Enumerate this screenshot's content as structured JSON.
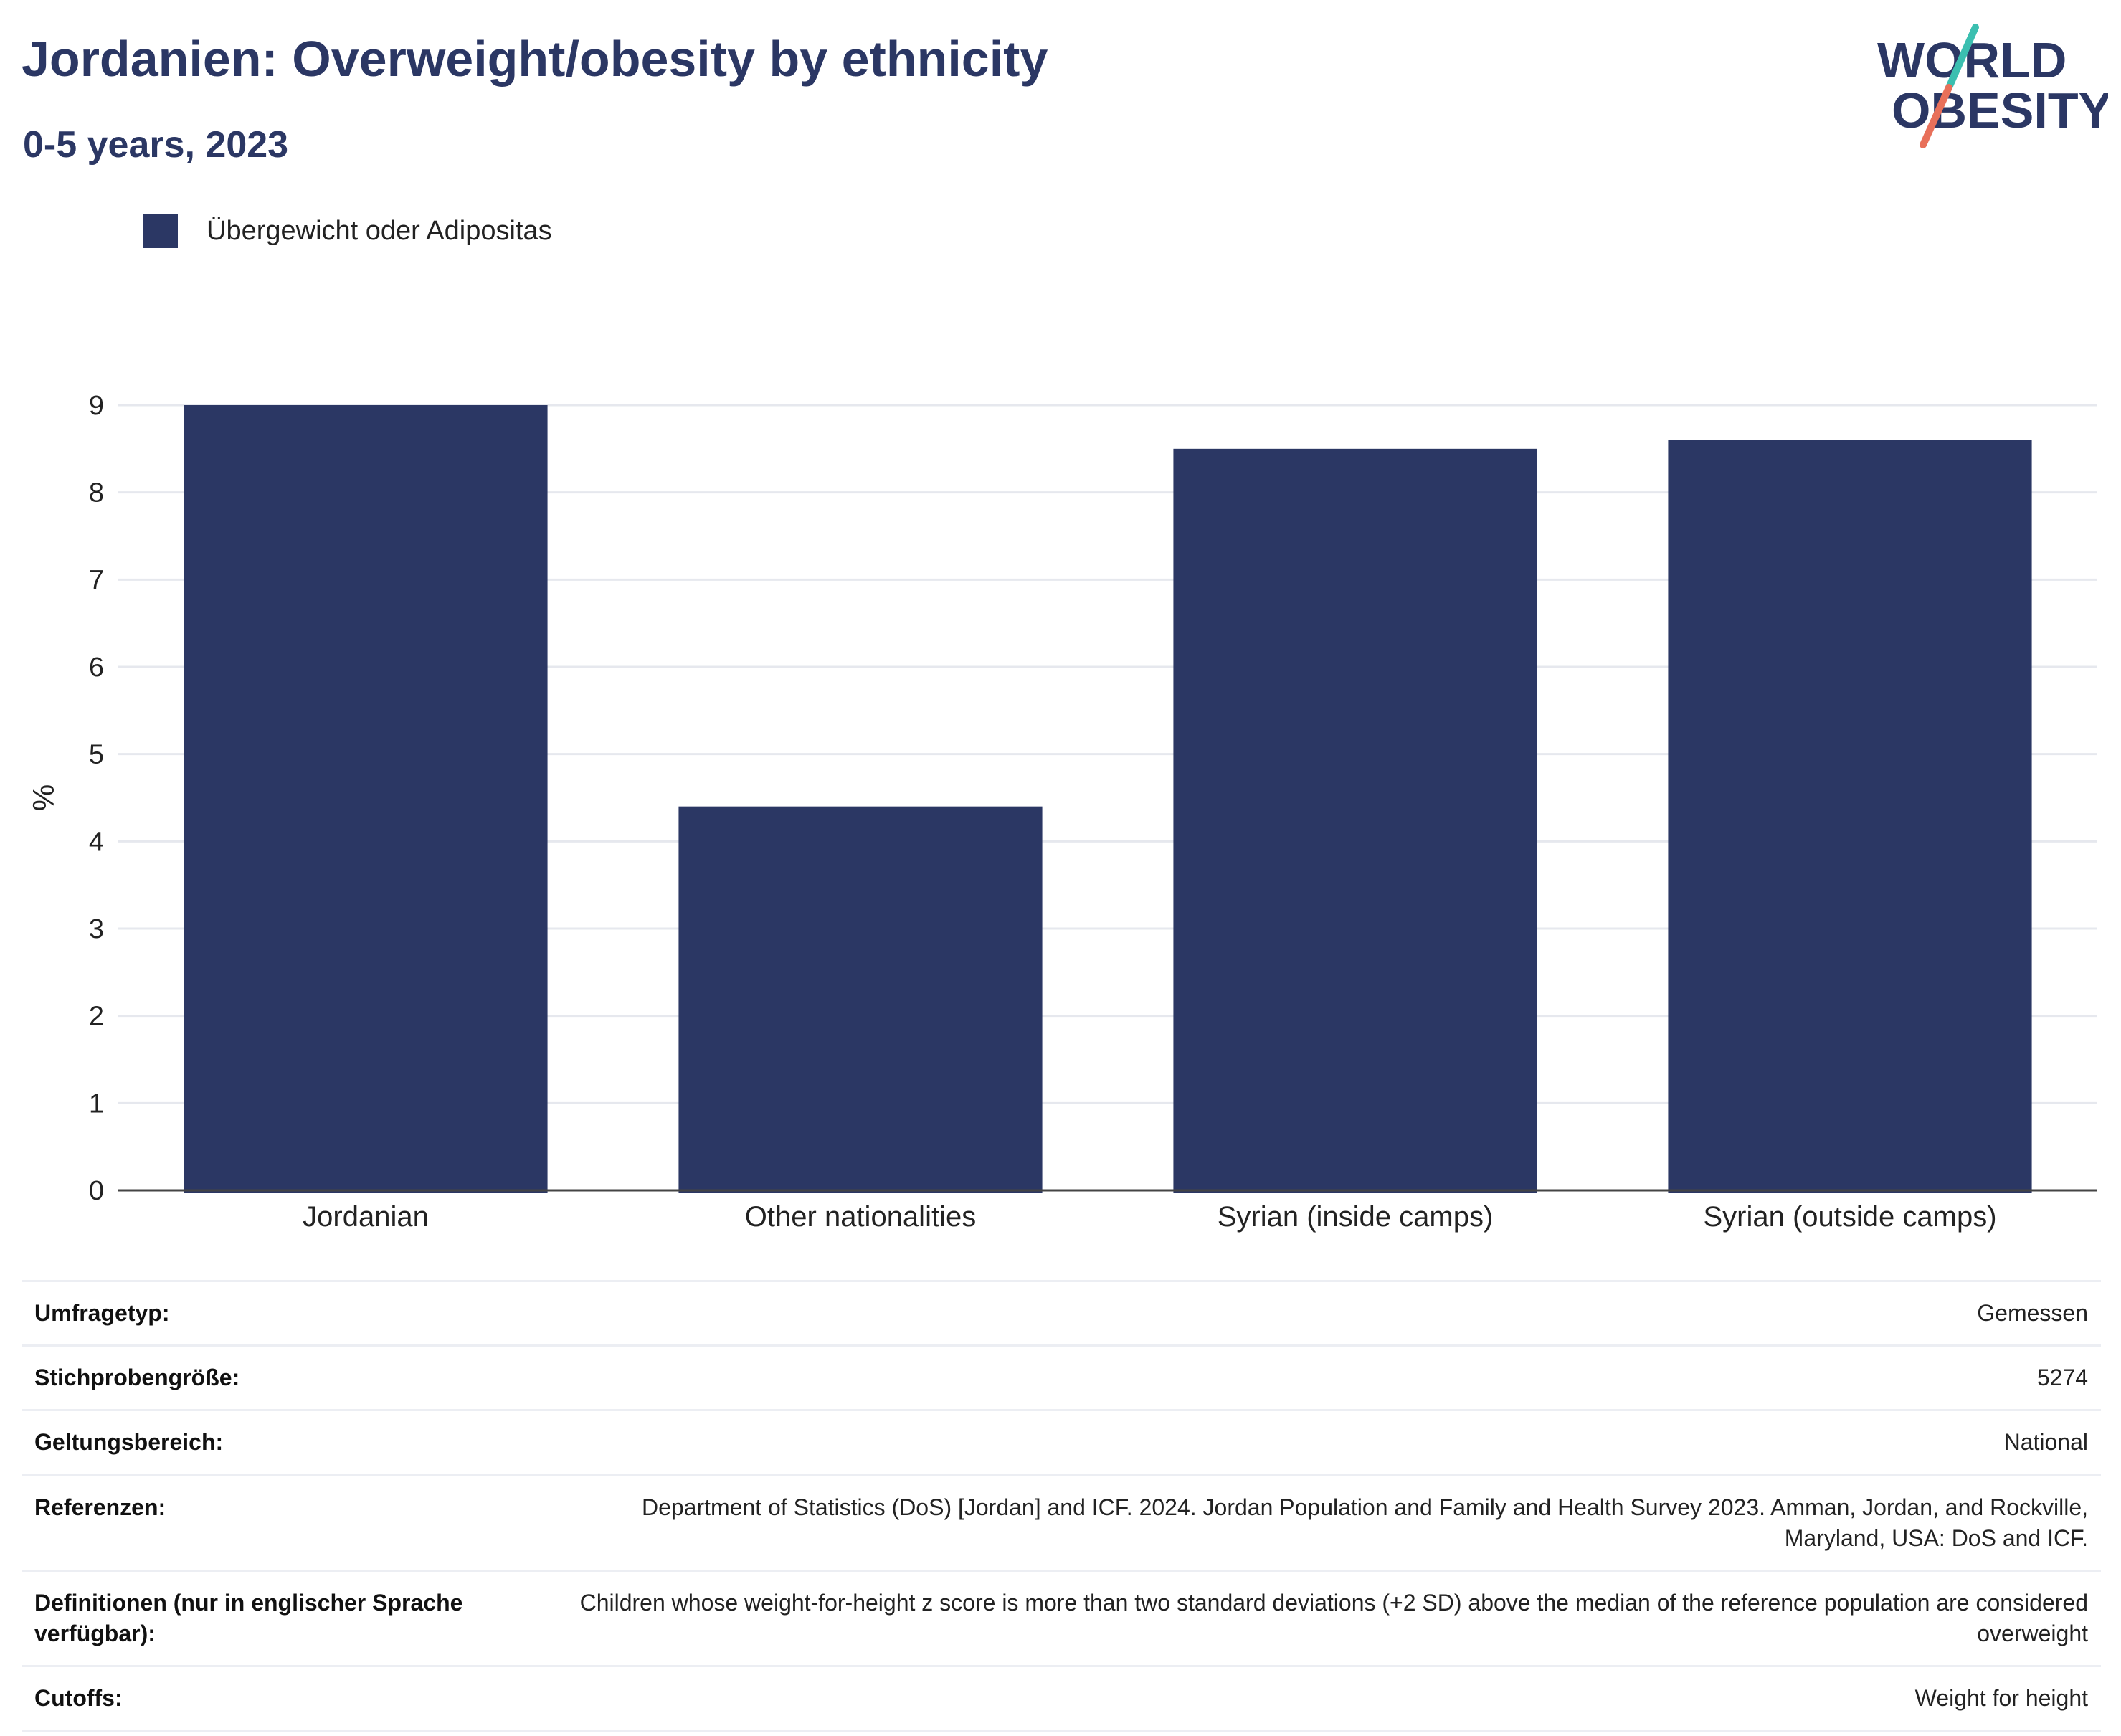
{
  "header": {
    "title": "Jordanien: Overweight/obesity by ethnicity",
    "subtitle": "0-5 years, 2023"
  },
  "logo": {
    "line1": "WORLD",
    "line2": "OBESITY",
    "colors": [
      "#2b3764",
      "#3bbfb0",
      "#e8705a"
    ]
  },
  "legend": {
    "label": "Übergewicht oder Adipositas"
  },
  "chart_data": {
    "type": "bar",
    "categories": [
      "Jordanian",
      "Other nationalities",
      "Syrian (inside camps)",
      "Syrian (outside camps)"
    ],
    "series": [
      {
        "name": "Übergewicht oder Adipositas",
        "values": [
          9.0,
          4.4,
          8.5,
          8.6
        ],
        "color": "#2b3764"
      }
    ],
    "title": "",
    "xlabel": "",
    "ylabel": "%",
    "ylim": [
      0,
      9
    ],
    "yticks": [
      0,
      1,
      2,
      3,
      4,
      5,
      6,
      7,
      8,
      9
    ],
    "grid": true
  },
  "info": [
    {
      "key": "Umfragetyp:",
      "value": "Gemessen"
    },
    {
      "key": "Stichprobengröße:",
      "value": "5274"
    },
    {
      "key": "Geltungsbereich:",
      "value": "National"
    },
    {
      "key": "Referenzen:",
      "value": "Department of Statistics (DoS) [Jordan] and ICF. 2024. Jordan Population and Family and Health Survey 2023. Amman, Jordan, and Rockville, Maryland, USA: DoS and ICF."
    },
    {
      "key": "Definitionen (nur in englischer Sprache verfügbar):",
      "value": "Children whose weight-for-height z score is more than two standard deviations (+2 SD) above the median of the reference population are considered overweight"
    },
    {
      "key": "Cutoffs:",
      "value": "Weight for height"
    }
  ]
}
